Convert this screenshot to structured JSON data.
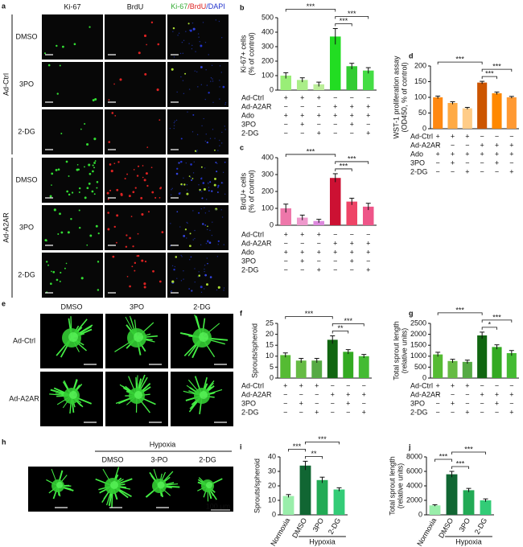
{
  "figure": {
    "panel_a": {
      "label": "a",
      "columns": [
        "Ki-67",
        "BrdU",
        [
          "Ki-67",
          "/BrdU",
          "/DAPI"
        ]
      ],
      "groups": [
        {
          "name": "Ad-Ctrl",
          "rows": [
            "DMSO",
            "3PO",
            "2-DG"
          ]
        },
        {
          "name": "Ad-A2AR",
          "rows": [
            "DMSO",
            "3PO",
            "2-DG"
          ]
        }
      ]
    },
    "panel_e": {
      "label": "e",
      "columns": [
        "DMSO",
        "3PO",
        "2-DG"
      ],
      "rows": [
        "Ad-Ctrl",
        "Ad-A2AR"
      ]
    },
    "panel_h": {
      "label": "h",
      "group": "Hypoxia",
      "columns": [
        "DMSO",
        "3-PO",
        "2-DG"
      ],
      "scale_bar": "100 µm"
    }
  },
  "chart_data": [
    {
      "type": "bar",
      "panel": "b",
      "ylabel": [
        "Ki-67+ cells",
        "(% of control)"
      ],
      "values": [
        100,
        70,
        40,
        370,
        165,
        135
      ],
      "errors": [
        20,
        15,
        15,
        55,
        20,
        20
      ],
      "colors": [
        "#99ee77",
        "#aaee88",
        "#bbee99",
        "#22dd22",
        "#33cc33",
        "#44dd44"
      ],
      "ylim": [
        0,
        500
      ],
      "yticks": [
        0,
        100,
        200,
        300,
        400,
        500
      ],
      "conditions": [
        {
          "name": "Ad-Ctrl",
          "signs": [
            "+",
            "+",
            "+",
            "−",
            "−",
            "−"
          ]
        },
        {
          "name": "Ad-A2AR",
          "signs": [
            "−",
            "−",
            "−",
            "+",
            "+",
            "+"
          ]
        },
        {
          "name": "Ado",
          "signs": [
            "+",
            "+",
            "+",
            "+",
            "+",
            "+"
          ]
        },
        {
          "name": "3PO",
          "signs": [
            "−",
            "+",
            "−",
            "−",
            "+",
            "−"
          ]
        },
        {
          "name": "2-DG",
          "signs": [
            "−",
            "−",
            "+",
            "−",
            "−",
            "+"
          ]
        }
      ],
      "significance": [
        {
          "between": [
            3,
            4
          ],
          "label": "***"
        },
        {
          "between": [
            3,
            5
          ],
          "label": "***"
        },
        {
          "between": [
            0,
            3
          ],
          "label": "***"
        }
      ]
    },
    {
      "type": "bar",
      "panel": "c",
      "ylabel": [
        "BrdU+ cells",
        "(% of control)"
      ],
      "values": [
        100,
        45,
        25,
        280,
        140,
        110
      ],
      "errors": [
        25,
        15,
        10,
        25,
        20,
        20
      ],
      "colors": [
        "#ee77aa",
        "#ee99cc",
        "#dd88dd",
        "#cc1133",
        "#ee4466",
        "#ee5588"
      ],
      "ylim": [
        0,
        400
      ],
      "yticks": [
        0,
        100,
        200,
        300,
        400
      ],
      "conditions": [
        {
          "name": "Ad-Ctrl",
          "signs": [
            "+",
            "+",
            "+",
            "−",
            "−",
            "−"
          ]
        },
        {
          "name": "Ad-A2AR",
          "signs": [
            "−",
            "−",
            "−",
            "+",
            "+",
            "+"
          ]
        },
        {
          "name": "Ado",
          "signs": [
            "+",
            "+",
            "+",
            "+",
            "+",
            "+"
          ]
        },
        {
          "name": "3PO",
          "signs": [
            "−",
            "+",
            "−",
            "−",
            "+",
            "−"
          ]
        },
        {
          "name": "2-DG",
          "signs": [
            "−",
            "−",
            "+",
            "−",
            "−",
            "+"
          ]
        }
      ],
      "significance": [
        {
          "between": [
            3,
            4
          ],
          "label": "***"
        },
        {
          "between": [
            3,
            5
          ],
          "label": "***"
        },
        {
          "between": [
            0,
            3
          ],
          "label": "***"
        }
      ]
    },
    {
      "type": "bar",
      "panel": "d",
      "ylabel": [
        "WST-1 proliferation assay",
        "(OD450, % of control)"
      ],
      "values": [
        100,
        82,
        65,
        147,
        113,
        100
      ],
      "errors": [
        4,
        4,
        3,
        4,
        4,
        3
      ],
      "colors": [
        "#ff8811",
        "#ffaa44",
        "#ffcc88",
        "#cc5500",
        "#ff8800",
        "#ff9933"
      ],
      "ylim": [
        0,
        200
      ],
      "yticks": [
        0,
        50,
        100,
        150,
        200
      ],
      "conditions": [
        {
          "name": "Ad-Ctrl",
          "signs": [
            "+",
            "+",
            "+",
            "−",
            "−",
            "−"
          ]
        },
        {
          "name": "Ad-A2AR",
          "signs": [
            "−",
            "−",
            "−",
            "+",
            "+",
            "+"
          ]
        },
        {
          "name": "Ado",
          "signs": [
            "+",
            "+",
            "+",
            "+",
            "+",
            "+"
          ]
        },
        {
          "name": "3PO",
          "signs": [
            "−",
            "+",
            "−",
            "−",
            "+",
            "−"
          ]
        },
        {
          "name": "2-DG",
          "signs": [
            "−",
            "−",
            "+",
            "−",
            "−",
            "+"
          ]
        }
      ],
      "significance": [
        {
          "between": [
            3,
            4
          ],
          "label": "***"
        },
        {
          "between": [
            3,
            5
          ],
          "label": "***"
        },
        {
          "between": [
            0,
            3
          ],
          "label": "***"
        }
      ]
    },
    {
      "type": "bar",
      "panel": "f",
      "ylabel": [
        "Sprouts/spheroid"
      ],
      "values": [
        10.5,
        8,
        8,
        17.5,
        12,
        10
      ],
      "errors": [
        1,
        1,
        1,
        1.8,
        1,
        0.8
      ],
      "colors": [
        "#55bb33",
        "#66bb44",
        "#55aa44",
        "#116611",
        "#33aa22",
        "#44bb33"
      ],
      "ylim": [
        0,
        25
      ],
      "yticks": [
        0,
        5,
        10,
        15,
        20,
        25
      ],
      "conditions": [
        {
          "name": "Ad-Ctrl",
          "signs": [
            "+",
            "+",
            "+",
            "−",
            "−",
            "−"
          ]
        },
        {
          "name": "Ad-A2AR",
          "signs": [
            "−",
            "−",
            "−",
            "+",
            "+",
            "+"
          ]
        },
        {
          "name": "3PO",
          "signs": [
            "−",
            "+",
            "−",
            "−",
            "+",
            "−"
          ]
        },
        {
          "name": "2-DG",
          "signs": [
            "−",
            "−",
            "+",
            "−",
            "−",
            "+"
          ]
        }
      ],
      "significance": [
        {
          "between": [
            3,
            4
          ],
          "label": "**"
        },
        {
          "between": [
            3,
            5
          ],
          "label": "***"
        },
        {
          "between": [
            0,
            3
          ],
          "label": "***"
        }
      ]
    },
    {
      "type": "bar",
      "panel": "g",
      "ylabel": [
        "Total sprout length",
        "(relative units)"
      ],
      "values": [
        1080,
        780,
        740,
        1950,
        1420,
        1140
      ],
      "errors": [
        100,
        80,
        80,
        150,
        100,
        120
      ],
      "colors": [
        "#55bb33",
        "#66bb44",
        "#55aa44",
        "#116611",
        "#33aa22",
        "#44bb33"
      ],
      "ylim": [
        0,
        2500
      ],
      "yticks": [
        0,
        500,
        1000,
        1500,
        2000,
        2500
      ],
      "conditions": [
        {
          "name": "Ad-Ctrl",
          "signs": [
            "+",
            "+",
            "+",
            "−",
            "−",
            "−"
          ]
        },
        {
          "name": "Ad-A2AR",
          "signs": [
            "−",
            "−",
            "−",
            "+",
            "+",
            "+"
          ]
        },
        {
          "name": "3PO",
          "signs": [
            "−",
            "+",
            "−",
            "−",
            "+",
            "−"
          ]
        },
        {
          "name": "2-DG",
          "signs": [
            "−",
            "−",
            "+",
            "−",
            "−",
            "+"
          ]
        }
      ],
      "significance": [
        {
          "between": [
            3,
            4
          ],
          "label": "*"
        },
        {
          "between": [
            3,
            5
          ],
          "label": "***"
        },
        {
          "between": [
            0,
            3
          ],
          "label": "***"
        }
      ]
    },
    {
      "type": "bar",
      "panel": "i",
      "ylabel": [
        "Sprouts/spheroid"
      ],
      "categories": [
        "Normoxia",
        "DMSO",
        "3PO",
        "2-DG"
      ],
      "values": [
        13,
        34,
        24,
        17.5
      ],
      "errors": [
        1,
        3,
        2,
        1.2
      ],
      "colors": [
        "#99eeaa",
        "#116633",
        "#22aa55",
        "#33cc77"
      ],
      "ylim": [
        0,
        40
      ],
      "yticks": [
        0,
        10,
        20,
        30,
        40
      ],
      "group": {
        "label": "Hypoxia",
        "between": [
          1,
          3
        ]
      },
      "significance": [
        {
          "between": [
            1,
            2
          ],
          "label": "**"
        },
        {
          "between": [
            1,
            3
          ],
          "label": "***"
        },
        {
          "between": [
            0,
            1
          ],
          "label": "***"
        }
      ]
    },
    {
      "type": "bar",
      "panel": "j",
      "ylabel": [
        "Total sprout length",
        "(relative units)"
      ],
      "categories": [
        "Normoxia",
        "DMSO",
        "3PO",
        "2-DG"
      ],
      "values": [
        1300,
        5600,
        3400,
        2000
      ],
      "errors": [
        100,
        400,
        250,
        200
      ],
      "colors": [
        "#99eeaa",
        "#116633",
        "#22aa55",
        "#33cc77"
      ],
      "ylim": [
        0,
        8000
      ],
      "yticks": [
        0,
        2000,
        4000,
        6000,
        8000
      ],
      "group": {
        "label": "Hypoxia",
        "between": [
          1,
          3
        ]
      },
      "significance": [
        {
          "between": [
            1,
            2
          ],
          "label": "***"
        },
        {
          "between": [
            1,
            3
          ],
          "label": "***"
        },
        {
          "between": [
            0,
            1
          ],
          "label": "***"
        }
      ]
    }
  ]
}
